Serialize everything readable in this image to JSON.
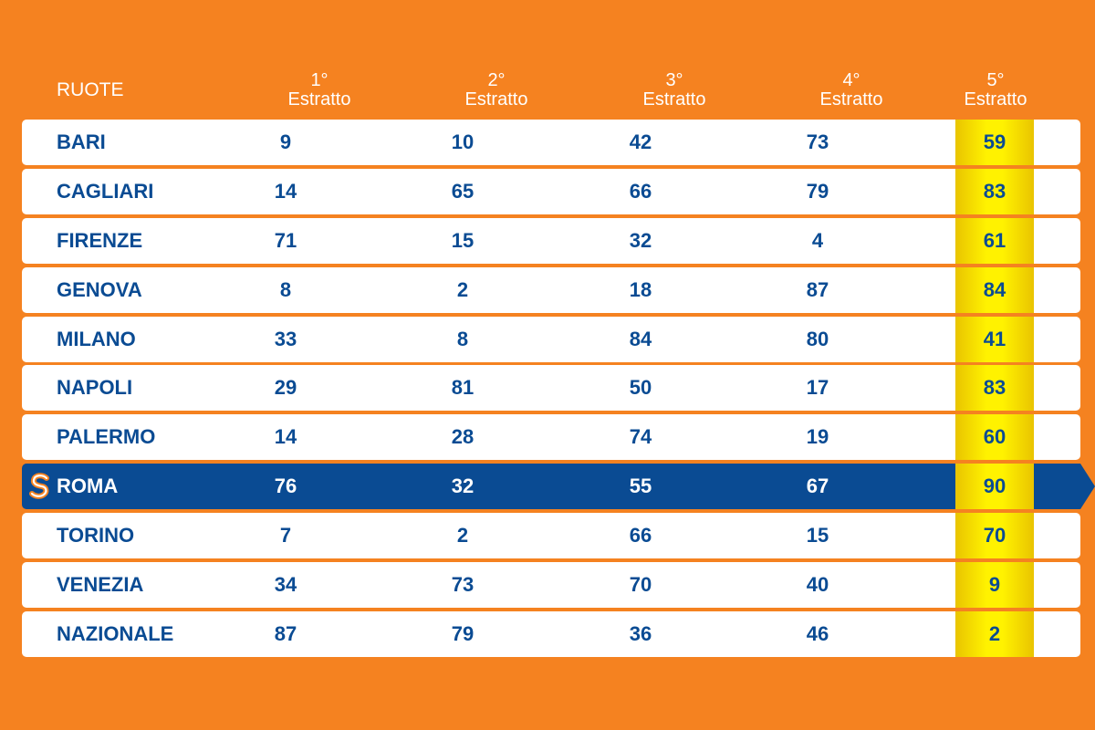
{
  "header": {
    "ruote": "RUOTE",
    "columns": [
      {
        "ordinal": "1°",
        "label": "Estratto"
      },
      {
        "ordinal": "2°",
        "label": "Estratto"
      },
      {
        "ordinal": "3°",
        "label": "Estratto"
      },
      {
        "ordinal": "4°",
        "label": "Estratto"
      },
      {
        "ordinal": "5°",
        "label": "Estratto"
      }
    ]
  },
  "rows": [
    {
      "name": "BARI",
      "values": [
        "9",
        "10",
        "42",
        "73",
        "59"
      ]
    },
    {
      "name": "CAGLIARI",
      "values": [
        "14",
        "65",
        "66",
        "79",
        "83"
      ]
    },
    {
      "name": "FIRENZE",
      "values": [
        "71",
        "15",
        "32",
        "4",
        "61"
      ]
    },
    {
      "name": "GENOVA",
      "values": [
        "8",
        "2",
        "18",
        "87",
        "84"
      ]
    },
    {
      "name": "MILANO",
      "values": [
        "33",
        "8",
        "84",
        "80",
        "41"
      ]
    },
    {
      "name": "NAPOLI",
      "values": [
        "29",
        "81",
        "50",
        "17",
        "83"
      ]
    },
    {
      "name": "PALERMO",
      "values": [
        "14",
        "28",
        "74",
        "19",
        "60"
      ]
    },
    {
      "name": "ROMA",
      "values": [
        "76",
        "32",
        "55",
        "67",
        "90"
      ],
      "selected": true
    },
    {
      "name": "TORINO",
      "values": [
        "7",
        "2",
        "66",
        "15",
        "70"
      ]
    },
    {
      "name": "VENEZIA",
      "values": [
        "34",
        "73",
        "70",
        "40",
        "9"
      ]
    },
    {
      "name": "NAZIONALE",
      "values": [
        "87",
        "79",
        "36",
        "46",
        "2"
      ]
    }
  ],
  "colors": {
    "background": "#f58220",
    "row_bg": "#ffffff",
    "text": "#0a4b93",
    "selected_bg": "#0a4b93",
    "highlight_column": "#fff200"
  },
  "icons": {
    "selected_badge": "s-badge-icon"
  }
}
